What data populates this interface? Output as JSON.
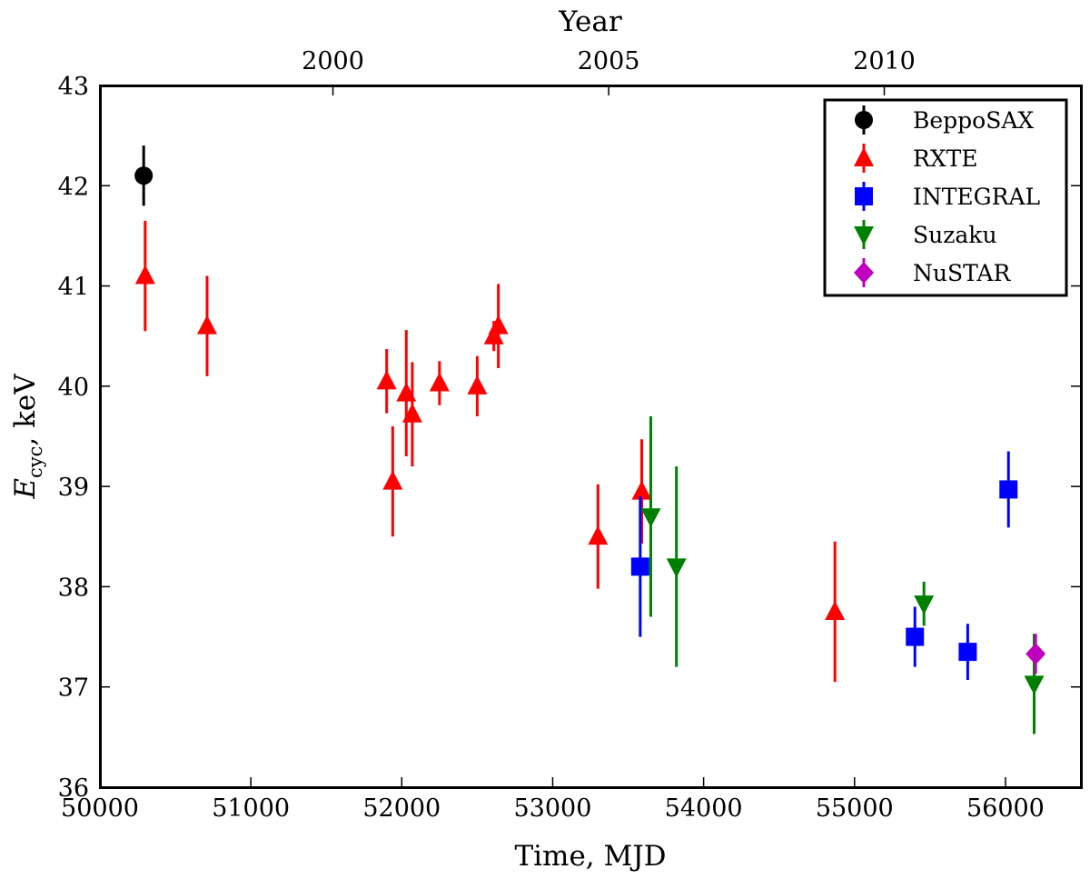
{
  "chart_data": {
    "type": "scatter",
    "xlabel": "Time, MJD",
    "ylabel": "E",
    "ylabel_subscript": "cyc",
    "ylabel_unit": ", keV",
    "top_xlabel": "Year",
    "xlim": [
      50000,
      56500
    ],
    "ylim": [
      36,
      43
    ],
    "x_ticks": [
      50000,
      51000,
      52000,
      53000,
      54000,
      55000,
      56000
    ],
    "y_ticks": [
      36,
      37,
      38,
      39,
      40,
      41,
      42,
      43
    ],
    "top_ticks": [
      {
        "label": "2000",
        "mjd": 51544
      },
      {
        "label": "2005",
        "mjd": 53371
      },
      {
        "label": "2010",
        "mjd": 55197
      }
    ],
    "grid": false,
    "legend_position": "top-right",
    "series": [
      {
        "name": "BeppoSAX",
        "color": "#000000",
        "marker": "circle",
        "points": [
          {
            "x": 50290,
            "y": 42.1,
            "err": 0.3
          }
        ]
      },
      {
        "name": "RXTE",
        "color": "#ff0000",
        "marker": "triangle-up",
        "points": [
          {
            "x": 50300,
            "y": 41.1,
            "err": 0.55
          },
          {
            "x": 50710,
            "y": 40.6,
            "err": 0.5
          },
          {
            "x": 51900,
            "y": 40.05,
            "err": 0.32
          },
          {
            "x": 51940,
            "y": 39.05,
            "err": 0.55
          },
          {
            "x": 52030,
            "y": 39.93,
            "err": 0.63
          },
          {
            "x": 52070,
            "y": 39.72,
            "err": 0.52
          },
          {
            "x": 52250,
            "y": 40.03,
            "err": 0.22
          },
          {
            "x": 52500,
            "y": 40.0,
            "err": 0.3
          },
          {
            "x": 52610,
            "y": 40.5,
            "err": 0.15
          },
          {
            "x": 52640,
            "y": 40.6,
            "err": 0.42
          },
          {
            "x": 53300,
            "y": 38.5,
            "err": 0.52
          },
          {
            "x": 53590,
            "y": 38.95,
            "err": 0.52
          },
          {
            "x": 54870,
            "y": 37.75,
            "err": 0.7
          }
        ]
      },
      {
        "name": "INTEGRAL",
        "color": "#0000ff",
        "marker": "square",
        "points": [
          {
            "x": 53580,
            "y": 38.2,
            "err": 0.7
          },
          {
            "x": 55400,
            "y": 37.5,
            "err": 0.3
          },
          {
            "x": 55750,
            "y": 37.35,
            "err": 0.28
          },
          {
            "x": 56020,
            "y": 38.97,
            "err": 0.38
          }
        ]
      },
      {
        "name": "Suzaku",
        "color": "#007f00",
        "marker": "triangle-down",
        "points": [
          {
            "x": 53650,
            "y": 38.7,
            "err": 1.0
          },
          {
            "x": 53820,
            "y": 38.2,
            "err": 1.0
          },
          {
            "x": 55460,
            "y": 37.83,
            "err": 0.22
          },
          {
            "x": 56190,
            "y": 37.03,
            "err": 0.5
          }
        ]
      },
      {
        "name": "NuSTAR",
        "color": "#bf00bf",
        "marker": "diamond",
        "points": [
          {
            "x": 56200,
            "y": 37.33,
            "err": 0.2
          }
        ]
      }
    ]
  }
}
